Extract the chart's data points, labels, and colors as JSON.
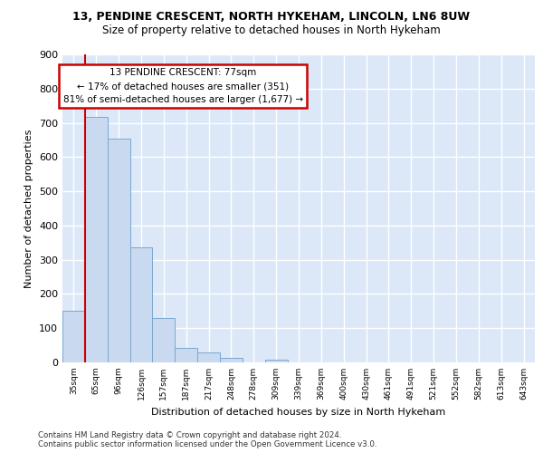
{
  "title1": "13, PENDINE CRESCENT, NORTH HYKEHAM, LINCOLN, LN6 8UW",
  "title2": "Size of property relative to detached houses in North Hykeham",
  "xlabel": "Distribution of detached houses by size in North Hykeham",
  "ylabel": "Number of detached properties",
  "bin_labels": [
    "35sqm",
    "65sqm",
    "96sqm",
    "126sqm",
    "157sqm",
    "187sqm",
    "217sqm",
    "248sqm",
    "278sqm",
    "309sqm",
    "339sqm",
    "369sqm",
    "400sqm",
    "430sqm",
    "461sqm",
    "491sqm",
    "521sqm",
    "552sqm",
    "582sqm",
    "613sqm",
    "643sqm"
  ],
  "bar_heights": [
    150,
    717,
    653,
    337,
    130,
    42,
    30,
    13,
    0,
    8,
    0,
    0,
    0,
    0,
    0,
    0,
    0,
    0,
    0,
    0,
    0
  ],
  "bar_color": "#c9d9f0",
  "bar_edge_color": "#7aa8d0",
  "annotation_text_line1": "13 PENDINE CRESCENT: 77sqm",
  "annotation_text_line2": "← 17% of detached houses are smaller (351)",
  "annotation_text_line3": "81% of semi-detached houses are larger (1,677) →",
  "annotation_box_color": "#ffffff",
  "annotation_border_color": "#cc0000",
  "red_line_x": 0.5,
  "ylim": [
    0,
    900
  ],
  "yticks": [
    0,
    100,
    200,
    300,
    400,
    500,
    600,
    700,
    800,
    900
  ],
  "footer_line1": "Contains HM Land Registry data © Crown copyright and database right 2024.",
  "footer_line2": "Contains public sector information licensed under the Open Government Licence v3.0.",
  "background_color": "#dce8f8",
  "grid_color": "#ffffff"
}
